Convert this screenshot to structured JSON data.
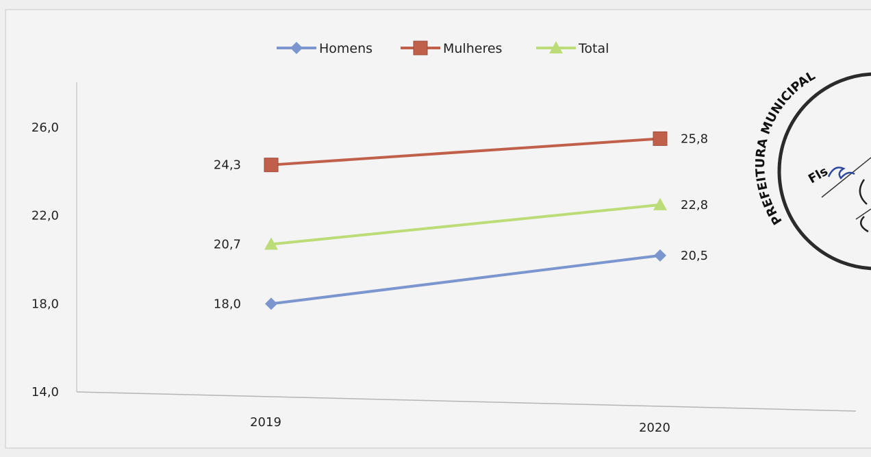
{
  "chart_data": {
    "type": "line",
    "categories": [
      "2019",
      "2020"
    ],
    "series": [
      {
        "name": "Homens",
        "values": [
          18.0,
          20.5
        ],
        "labels": [
          "18,0",
          "20,5"
        ],
        "color": "#7b96cf",
        "marker": "diamond"
      },
      {
        "name": "Mulheres",
        "values": [
          24.3,
          25.8
        ],
        "labels": [
          "24,3",
          "25,8"
        ],
        "color": "#c0604b",
        "marker": "square"
      },
      {
        "name": "Total",
        "values": [
          20.7,
          22.8
        ],
        "labels": [
          "20,7",
          "22,8"
        ],
        "color": "#bcdc78",
        "marker": "triangle"
      }
    ],
    "ylim": [
      14.0,
      26.0
    ],
    "yticks": [
      "14,0",
      "18,0",
      "22,0",
      "26,0"
    ],
    "ytick_values": [
      14,
      18,
      22,
      26
    ],
    "grid": false,
    "legend_position": "top"
  },
  "stamp": {
    "ring_text": "PREFEITURA MUNICIPAL",
    "label": "Fls"
  }
}
